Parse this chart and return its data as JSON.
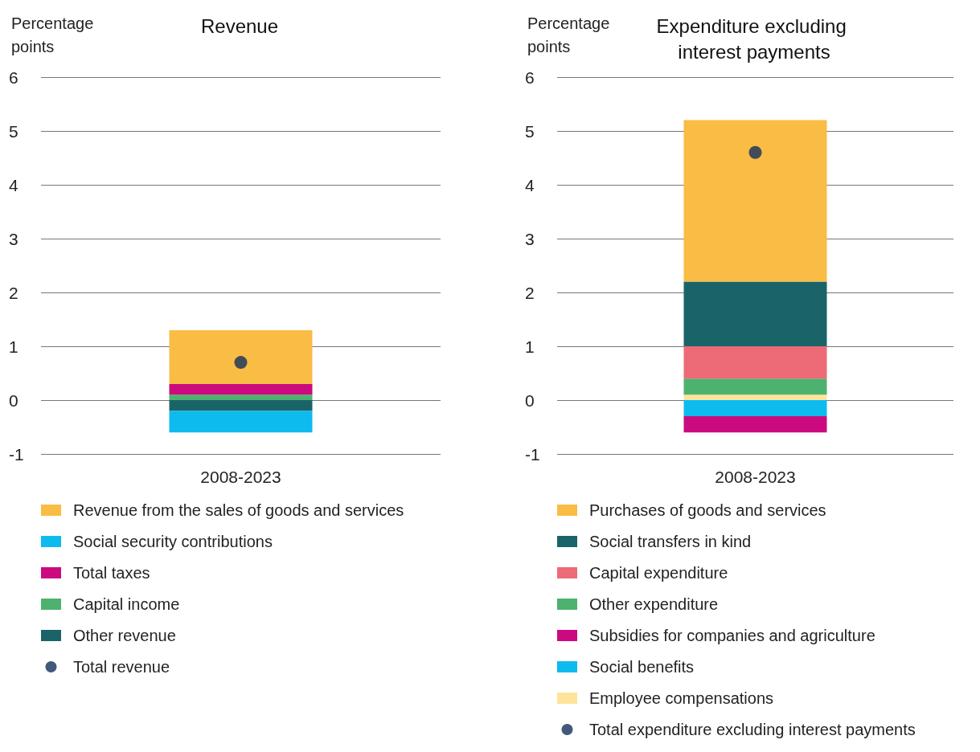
{
  "chart_data": [
    {
      "type": "bar",
      "title": "Revenue",
      "ylabel": "Percentage points",
      "categories": [
        "2008-2023"
      ],
      "stacked": true,
      "ylim": [
        -1,
        6
      ],
      "yticks": [
        -1,
        0,
        1,
        2,
        3,
        4,
        5,
        6
      ],
      "grid": "y",
      "legend": "bottom",
      "series": [
        {
          "name": "Total revenue",
          "type": "scatter",
          "color": "#13305a",
          "x": [
            "2008-2023"
          ],
          "values": [
            0.7
          ],
          "marker": "circle"
        },
        {
          "name": "Other revenue",
          "color": "#1a6469",
          "values": [
            -0.2
          ]
        },
        {
          "name": "Capital income",
          "color": "#4db26e",
          "values": [
            0.1
          ]
        },
        {
          "name": "Total taxes",
          "color": "#cc0a7f",
          "values": [
            0.2
          ]
        },
        {
          "name": "Social security contributions",
          "color": "#0dbbef",
          "values": [
            -0.4
          ]
        },
        {
          "name": "Revenue from the sales of goods and services",
          "color": "#f9bc45",
          "values": [
            1.0
          ]
        }
      ]
    },
    {
      "type": "bar",
      "title": "Expenditure excluding interest payments",
      "ylabel": "Percentage points",
      "categories": [
        "2008-2023"
      ],
      "stacked": true,
      "ylim": [
        -1,
        6
      ],
      "yticks": [
        -1,
        0,
        1,
        2,
        3,
        4,
        5,
        6
      ],
      "grid": "y",
      "legend": "bottom",
      "series": [
        {
          "name": "Total expenditure excluding interest payments",
          "type": "scatter",
          "color": "#13305a",
          "x": [
            "2008-2023"
          ],
          "values": [
            4.6
          ],
          "marker": "circle"
        },
        {
          "name": "Employee compensations",
          "color": "#fde49a",
          "values": [
            0.1
          ]
        },
        {
          "name": "Social benefits",
          "color": "#0dbbef",
          "values": [
            -0.3
          ]
        },
        {
          "name": "Subsidies for companies and agriculture",
          "color": "#cc0a7f",
          "values": [
            -0.3
          ]
        },
        {
          "name": "Other expenditure",
          "color": "#4db26e",
          "values": [
            0.3
          ]
        },
        {
          "name": "Capital expenditure",
          "color": "#ec6b77",
          "values": [
            0.6
          ]
        },
        {
          "name": "Social transfers in kind",
          "color": "#1a6469",
          "values": [
            1.2
          ]
        },
        {
          "name": "Purchases of goods and services",
          "color": "#f9bc45",
          "values": [
            3.0
          ]
        }
      ]
    }
  ]
}
